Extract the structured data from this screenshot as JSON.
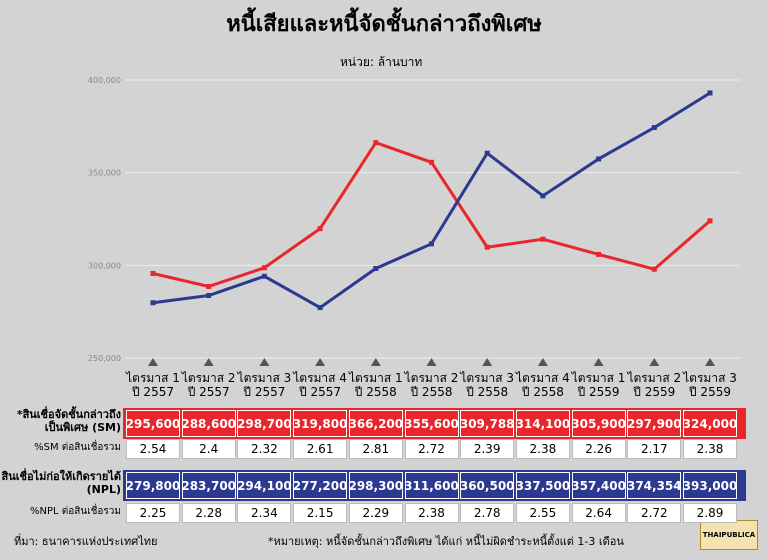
{
  "chart_data": {
    "type": "line",
    "title": "หนี้เสียและหนี้จัดชั้นกล่าวถึงพิเศษ",
    "subtitle": "หน่วย: ล้านบาท",
    "categories": [
      "ไตรมาส 1\nปี 2557",
      "ไตรมาส 2\nปี 2557",
      "ไตรมาส 3\nปี 2557",
      "ไตรมาส 4\nปี 2557",
      "ไตรมาส 1\nปี 2558",
      "ไตรมาส 2\nปี 2558",
      "ไตรมาส 3\nปี 2558",
      "ไตรมาส 4\nปี 2558",
      "ไตรมาส 1\nปี 2559",
      "ไตรมาส 2\nปี 2559",
      "ไตรมาส 3\nปี 2559"
    ],
    "series": [
      {
        "name": "*สินเชื่อจัดชั้นกล่าวถึง\nเป็นพิเศษ (SM)",
        "color": "#e8262c",
        "values": [
          295600,
          288600,
          298700,
          319800,
          366200,
          355600,
          309788,
          314100,
          305900,
          297900,
          324000
        ],
        "value_labels": [
          "295,600",
          "288,600",
          "298,700",
          "319,800",
          "366,200",
          "355,600",
          "309,788",
          "314,100",
          "305,900",
          "297,900",
          "324,000"
        ],
        "pct_name": "%SM ต่อสินเชื่อรวม",
        "pct": [
          2.54,
          2.4,
          2.32,
          2.61,
          2.81,
          2.72,
          2.39,
          2.38,
          2.26,
          2.17,
          2.38
        ]
      },
      {
        "name": "สินเชื่อไม่ก่อให้เกิดรายได้\n(NPL)",
        "color": "#2b3990",
        "values": [
          279800,
          283700,
          294100,
          277200,
          298300,
          311600,
          360500,
          337500,
          357400,
          374354,
          393000
        ],
        "value_labels": [
          "279,800",
          "283,700",
          "294,100",
          "277,200",
          "298,300",
          "311,600",
          "360,500",
          "337,500",
          "357,400",
          "374,354",
          "393,000"
        ],
        "pct_name": "%NPL ต่อสินเชื่อรวม",
        "pct": [
          2.25,
          2.28,
          2.34,
          2.15,
          2.29,
          2.38,
          2.78,
          2.55,
          2.64,
          2.72,
          2.89
        ]
      }
    ],
    "ylim": [
      250000,
      400000
    ],
    "yticks": [
      {
        "value": 250000,
        "label": "250,000"
      },
      {
        "value": 300000,
        "label": "300,000"
      },
      {
        "value": 350000,
        "label": "350,000"
      },
      {
        "value": 400000,
        "label": "400,000"
      }
    ],
    "grid": true,
    "source": "ที่มา: ธนาคารแห่งประเทศไทย",
    "note": "*หมายเหตุ: หนี้จัดชั้นกล่าวถึงพิเศษ ได้แก่ หนี้ไม่ผิดชำระหนี้ตั้งแต่ 1-3 เดือน",
    "logo": "THAIPUBLICA"
  }
}
